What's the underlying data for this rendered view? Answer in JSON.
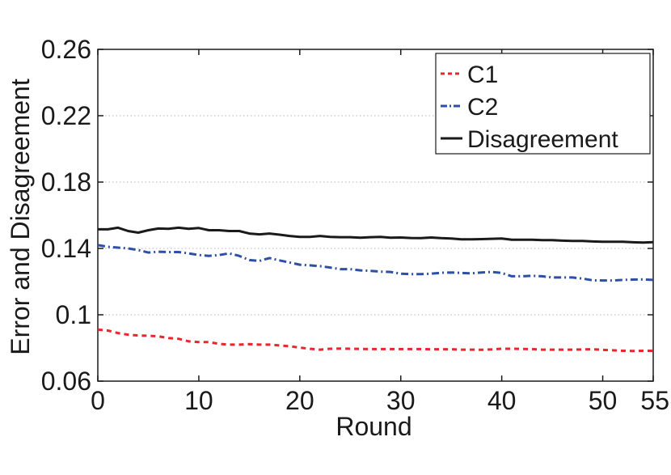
{
  "chart_data": {
    "type": "line",
    "xlabel": "Round",
    "ylabel": "Error and Disagreement",
    "xlim": [
      0,
      55
    ],
    "ylim": [
      0.06,
      0.26
    ],
    "xticks": [
      0,
      10,
      20,
      30,
      40,
      50,
      55
    ],
    "xtick_labels": [
      "0",
      "10",
      "20",
      "30",
      "40",
      "50",
      "55"
    ],
    "yticks": [
      0.06,
      0.1,
      0.14,
      0.18,
      0.22,
      0.26
    ],
    "ytick_labels": [
      "0.06",
      "0.1",
      "0.14",
      "0.18",
      "0.22",
      "0.26"
    ],
    "grid": "horizontal dotted",
    "legend_position": "top-right",
    "x": [
      0,
      1,
      2,
      3,
      4,
      5,
      6,
      7,
      8,
      9,
      10,
      11,
      12,
      13,
      14,
      15,
      16,
      17,
      18,
      19,
      20,
      21,
      22,
      23,
      24,
      25,
      26,
      27,
      28,
      29,
      30,
      31,
      32,
      33,
      34,
      35,
      36,
      37,
      38,
      39,
      40,
      41,
      42,
      43,
      44,
      45,
      46,
      47,
      48,
      49,
      50,
      51,
      52,
      53,
      54,
      55
    ],
    "series": [
      {
        "name": "C1",
        "color": "#e8262b",
        "dash": "dashed",
        "values": [
          0.091,
          0.0905,
          0.089,
          0.088,
          0.0875,
          0.0873,
          0.087,
          0.086,
          0.0855,
          0.084,
          0.0835,
          0.0835,
          0.0825,
          0.082,
          0.082,
          0.0823,
          0.082,
          0.082,
          0.0815,
          0.081,
          0.0802,
          0.0795,
          0.079,
          0.0795,
          0.0796,
          0.0795,
          0.0794,
          0.0793,
          0.0793,
          0.0793,
          0.0793,
          0.0793,
          0.0793,
          0.0792,
          0.0792,
          0.0792,
          0.079,
          0.079,
          0.0789,
          0.0791,
          0.0795,
          0.0795,
          0.0794,
          0.0793,
          0.079,
          0.079,
          0.079,
          0.079,
          0.0791,
          0.0792,
          0.0789,
          0.0786,
          0.0783,
          0.0782,
          0.0783,
          0.0783
        ]
      },
      {
        "name": "C2",
        "color": "#2d4fa8",
        "dash": "dashdot",
        "values": [
          0.142,
          0.141,
          0.1405,
          0.14,
          0.139,
          0.1375,
          0.138,
          0.1378,
          0.1378,
          0.137,
          0.136,
          0.1355,
          0.136,
          0.137,
          0.1355,
          0.133,
          0.1325,
          0.1342,
          0.1328,
          0.1315,
          0.1302,
          0.1298,
          0.1293,
          0.1285,
          0.1275,
          0.1275,
          0.1268,
          0.1265,
          0.126,
          0.1258,
          0.1248,
          0.1245,
          0.1245,
          0.1248,
          0.1253,
          0.1255,
          0.1252,
          0.125,
          0.1255,
          0.1258,
          0.1252,
          0.1232,
          0.1232,
          0.1235,
          0.1232,
          0.1225,
          0.1225,
          0.1225,
          0.1218,
          0.1208,
          0.1207,
          0.1207,
          0.121,
          0.1212,
          0.1213,
          0.121
        ]
      },
      {
        "name": "Disagreement",
        "color": "#1a1a1a",
        "dash": "solid",
        "values": [
          0.1515,
          0.1515,
          0.1525,
          0.1505,
          0.1495,
          0.151,
          0.152,
          0.1518,
          0.1525,
          0.1518,
          0.1523,
          0.151,
          0.151,
          0.1505,
          0.1505,
          0.149,
          0.1485,
          0.149,
          0.1483,
          0.1475,
          0.147,
          0.147,
          0.1475,
          0.147,
          0.1468,
          0.1468,
          0.1465,
          0.1468,
          0.147,
          0.1465,
          0.1466,
          0.1463,
          0.1462,
          0.1466,
          0.1462,
          0.146,
          0.1455,
          0.1455,
          0.1456,
          0.1458,
          0.146,
          0.1452,
          0.1452,
          0.1452,
          0.145,
          0.145,
          0.1447,
          0.1445,
          0.1445,
          0.1442,
          0.144,
          0.144,
          0.144,
          0.1437,
          0.1435,
          0.1438
        ]
      }
    ]
  }
}
